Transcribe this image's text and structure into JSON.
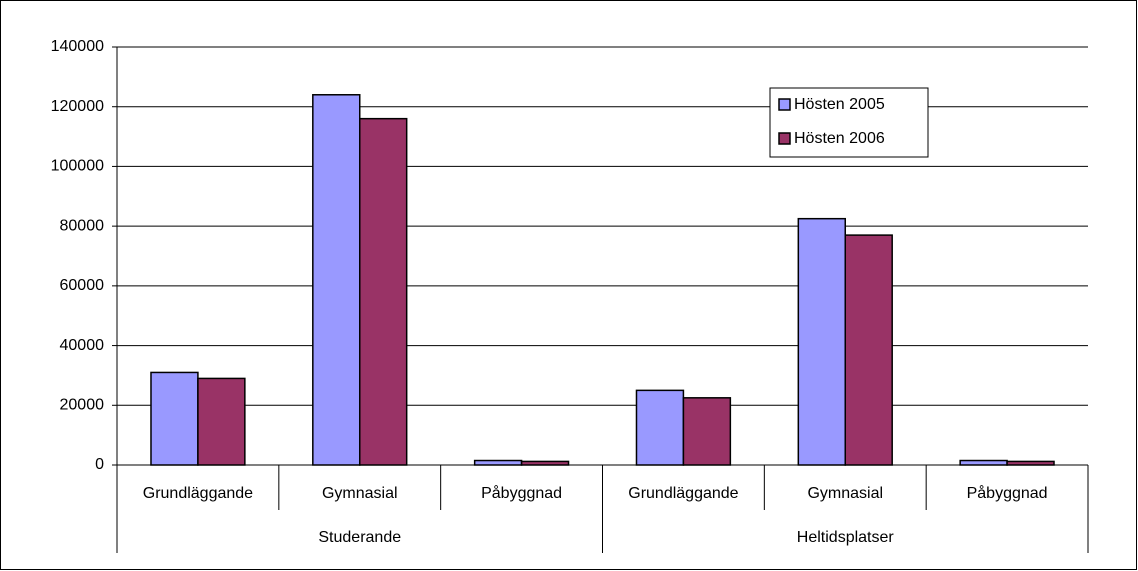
{
  "chart_data": {
    "type": "bar",
    "categories": [
      "Grundläggande",
      "Gymnasial",
      "Påbyggnad",
      "Grundläggande",
      "Gymnasial",
      "Påbyggnad"
    ],
    "groups": [
      "Studerande",
      "Heltidsplatser"
    ],
    "series": [
      {
        "name": "Hösten 2005",
        "color": "#9999ff",
        "values": [
          31000,
          124000,
          1500,
          25000,
          82500,
          1500
        ]
      },
      {
        "name": "Hösten 2006",
        "color": "#993366",
        "values": [
          29000,
          116000,
          1200,
          22500,
          77000,
          1200
        ]
      }
    ],
    "ylim": [
      0,
      140000
    ],
    "yticks": [
      0,
      20000,
      40000,
      60000,
      80000,
      100000,
      120000,
      140000
    ],
    "grid": true,
    "legend": "upper right"
  }
}
